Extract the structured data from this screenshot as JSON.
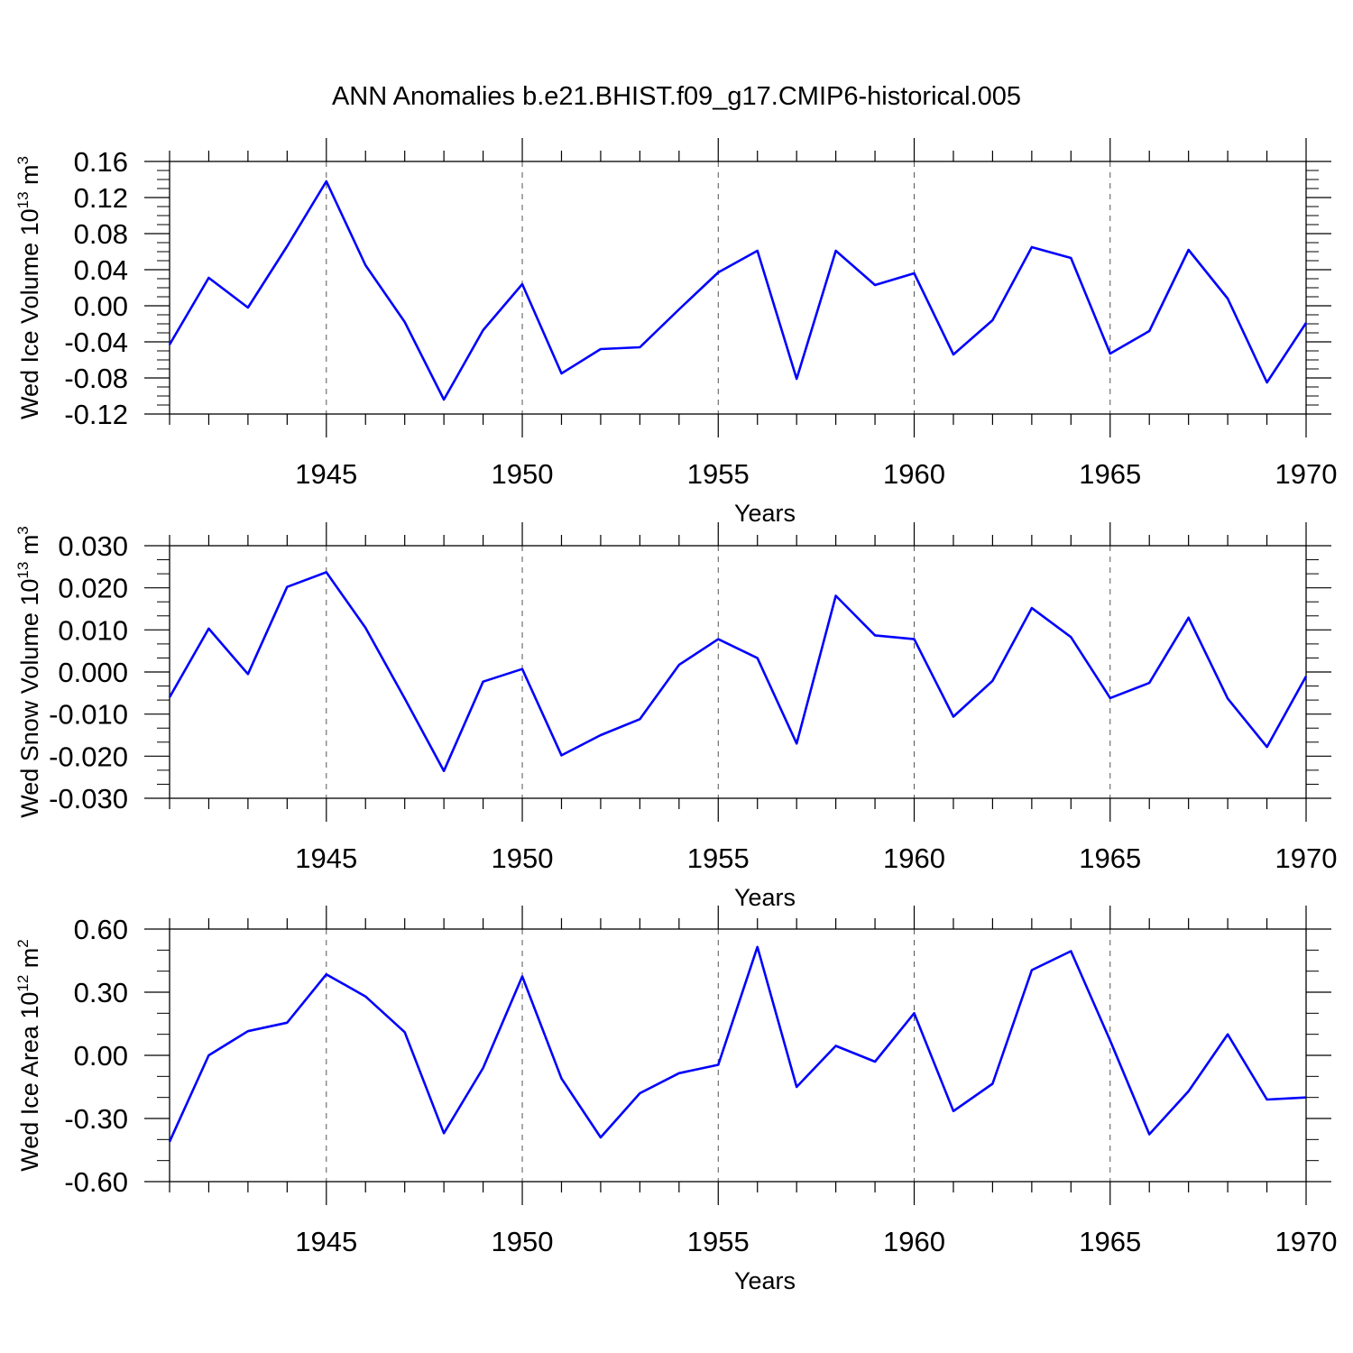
{
  "title": "ANN Anomalies b.e21.BHIST.f09_g17.CMIP6-historical.005",
  "colors": {
    "line": "#0000ff",
    "axis": "#000000",
    "grid": "#555555"
  },
  "chart_data": [
    {
      "type": "line",
      "ylabel": {
        "text": "Wed Ice Volume 10",
        "exp": "13",
        "unit": " m",
        "unit_exp": "3"
      },
      "xlabel": "Years",
      "xlim": [
        1941,
        1970
      ],
      "ylim": [
        -0.12,
        0.16
      ],
      "yticks": [
        "0.16",
        "0.12",
        "0.08",
        "0.04",
        "0.00",
        "-0.04",
        "-0.08",
        "-0.12"
      ],
      "xticks": [
        "1945",
        "1950",
        "1955",
        "1960",
        "1965",
        "1970"
      ],
      "grid": "dashed vertical at major x ticks",
      "x": [
        1941,
        1942,
        1943,
        1944,
        1945,
        1946,
        1947,
        1948,
        1949,
        1950,
        1951,
        1952,
        1953,
        1954,
        1955,
        1956,
        1957,
        1958,
        1959,
        1960,
        1961,
        1962,
        1963,
        1964,
        1965,
        1966,
        1967,
        1968,
        1969,
        1970
      ],
      "series": [
        {
          "values": [
            -0.043,
            0.031,
            -0.002,
            0.066,
            0.138,
            0.045,
            -0.018,
            -0.104,
            -0.027,
            0.024,
            -0.075,
            -0.048,
            -0.046,
            -0.004,
            0.037,
            0.061,
            -0.081,
            0.061,
            0.023,
            0.036,
            -0.054,
            -0.016,
            0.065,
            0.053,
            -0.053,
            -0.028,
            0.062,
            0.008,
            -0.085,
            -0.019
          ]
        }
      ]
    },
    {
      "type": "line",
      "ylabel": {
        "text": "Wed Snow Volume 10",
        "exp": "13",
        "unit": " m",
        "unit_exp": "3"
      },
      "xlabel": "Years",
      "xlim": [
        1941,
        1970
      ],
      "ylim": [
        -0.03,
        0.03
      ],
      "yticks": [
        "0.030",
        "0.020",
        "0.010",
        "0.000",
        "-0.010",
        "-0.020",
        "-0.030"
      ],
      "xticks": [
        "1945",
        "1950",
        "1955",
        "1960",
        "1965",
        "1970"
      ],
      "grid": "dashed vertical at major x ticks",
      "x": [
        1941,
        1942,
        1943,
        1944,
        1945,
        1946,
        1947,
        1948,
        1949,
        1950,
        1951,
        1952,
        1953,
        1954,
        1955,
        1956,
        1957,
        1958,
        1959,
        1960,
        1961,
        1962,
        1963,
        1964,
        1965,
        1966,
        1967,
        1968,
        1969,
        1970
      ],
      "series": [
        {
          "values": [
            -0.006,
            0.0103,
            -0.0005,
            0.0202,
            0.0237,
            0.0105,
            -0.0063,
            -0.0235,
            -0.0023,
            0.0007,
            -0.0198,
            -0.015,
            -0.0112,
            0.0017,
            0.0078,
            0.0033,
            -0.017,
            0.0181,
            0.0087,
            0.0078,
            -0.0106,
            -0.0021,
            0.0152,
            0.0083,
            -0.0062,
            -0.0026,
            0.0129,
            -0.0063,
            -0.0178,
            -0.001
          ]
        }
      ]
    },
    {
      "type": "line",
      "ylabel": {
        "text": "Wed Ice Area 10",
        "exp": "12",
        "unit": " m",
        "unit_exp": "2"
      },
      "xlabel": "Years",
      "xlim": [
        1941,
        1970
      ],
      "ylim": [
        -0.6,
        0.6
      ],
      "yticks": [
        "0.60",
        "0.30",
        "0.00",
        "-0.30",
        "-0.60"
      ],
      "xticks": [
        "1945",
        "1950",
        "1955",
        "1960",
        "1965",
        "1970"
      ],
      "grid": "dashed vertical at major x ticks",
      "x": [
        1941,
        1942,
        1943,
        1944,
        1945,
        1946,
        1947,
        1948,
        1949,
        1950,
        1951,
        1952,
        1953,
        1954,
        1955,
        1956,
        1957,
        1958,
        1959,
        1960,
        1961,
        1962,
        1963,
        1964,
        1965,
        1966,
        1967,
        1968,
        1969,
        1970
      ],
      "series": [
        {
          "values": [
            -0.41,
            0.0,
            0.115,
            0.155,
            0.385,
            0.28,
            0.11,
            -0.37,
            -0.06,
            0.375,
            -0.11,
            -0.39,
            -0.18,
            -0.085,
            -0.045,
            0.515,
            -0.15,
            0.045,
            -0.03,
            0.2,
            -0.265,
            -0.135,
            0.405,
            0.495,
            0.07,
            -0.375,
            -0.17,
            0.1,
            -0.21,
            -0.2
          ]
        }
      ]
    }
  ]
}
